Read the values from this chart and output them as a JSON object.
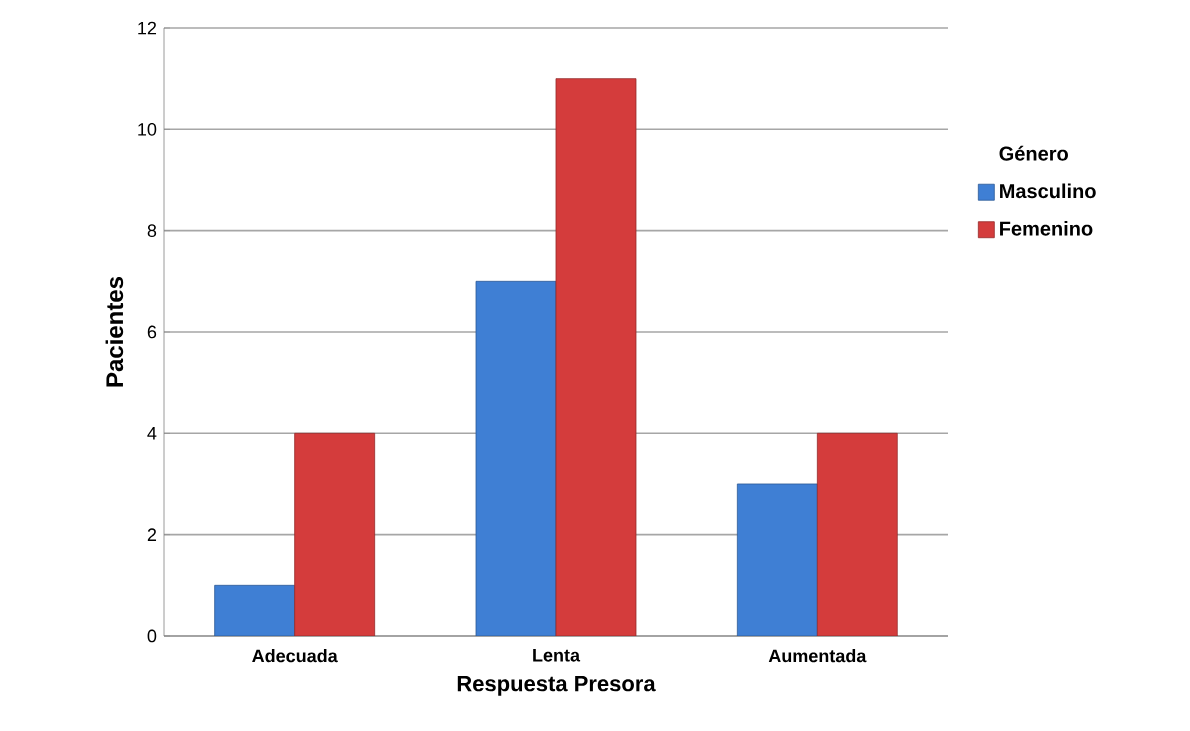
{
  "chart_data": {
    "type": "bar",
    "xlabel": "Respuesta Presora",
    "ylabel": "Pacientes",
    "legend_title": "Género",
    "categories": [
      "Adecuada",
      "Lenta",
      "Aumentada"
    ],
    "series": [
      {
        "name": "Masculino",
        "color": "#3f7fd4",
        "values": [
          1,
          7,
          3
        ]
      },
      {
        "name": "Femenino",
        "color": "#d43c3c",
        "values": [
          4,
          11,
          4
        ]
      }
    ],
    "ylim": [
      0,
      12
    ],
    "yticks": [
      0,
      2,
      4,
      6,
      8,
      10,
      12
    ],
    "grid": "y",
    "legend": "right"
  }
}
